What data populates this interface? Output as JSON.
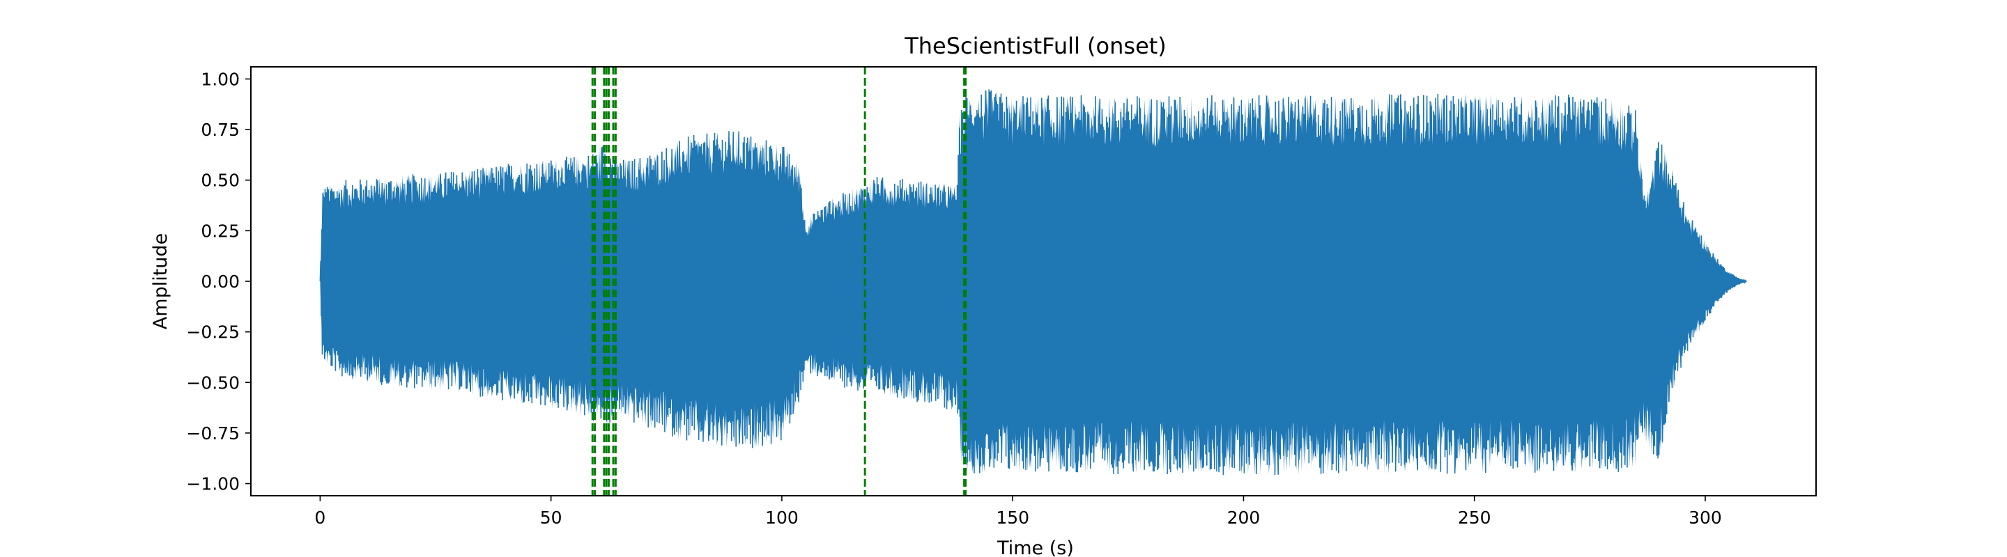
{
  "chart_data": {
    "type": "line",
    "title": "TheScientistFull (onset)",
    "xlabel": "Time (s)",
    "ylabel": "Amplitude",
    "xlim": [
      -15,
      324
    ],
    "ylim": [
      -1.06,
      1.06
    ],
    "xticks": [
      0,
      50,
      100,
      150,
      200,
      250,
      300
    ],
    "yticks": [
      -1.0,
      -0.75,
      -0.5,
      -0.25,
      0.0,
      0.25,
      0.5,
      0.75,
      1.0
    ],
    "ytick_labels": [
      "−1.00",
      "−0.75",
      "−0.50",
      "−0.25",
      "0.00",
      "0.25",
      "0.50",
      "0.75",
      "1.00"
    ],
    "grid": false,
    "legend": "none",
    "series": [
      {
        "kind": "waveform-envelope",
        "color": "#1f77b4",
        "x": [
          0,
          0.5,
          5,
          15,
          30,
          45,
          55,
          59,
          62,
          64,
          70,
          80,
          90,
          100,
          104,
          105,
          110,
          117,
          120,
          130,
          138,
          138.5,
          140,
          145,
          150,
          200,
          250,
          280,
          285,
          286,
          287,
          288,
          290,
          293,
          296,
          300,
          303,
          305,
          307,
          309
        ],
        "upper": [
          0.0,
          0.47,
          0.5,
          0.52,
          0.55,
          0.6,
          0.62,
          0.64,
          0.7,
          0.6,
          0.62,
          0.72,
          0.75,
          0.68,
          0.58,
          0.3,
          0.4,
          0.48,
          0.52,
          0.5,
          0.48,
          0.82,
          0.94,
          0.95,
          0.92,
          0.92,
          0.93,
          0.92,
          0.85,
          0.6,
          0.42,
          0.5,
          0.72,
          0.55,
          0.35,
          0.2,
          0.1,
          0.05,
          0.02,
          0.0
        ],
        "lower": [
          0.0,
          -0.4,
          -0.48,
          -0.52,
          -0.55,
          -0.62,
          -0.65,
          -0.7,
          -0.72,
          -0.68,
          -0.72,
          -0.8,
          -0.85,
          -0.8,
          -0.6,
          -0.45,
          -0.5,
          -0.55,
          -0.55,
          -0.6,
          -0.65,
          -0.88,
          -0.95,
          -0.96,
          -0.95,
          -0.96,
          -0.95,
          -0.95,
          -0.92,
          -0.85,
          -0.8,
          -0.85,
          -0.9,
          -0.55,
          -0.35,
          -0.2,
          -0.1,
          -0.05,
          -0.02,
          0.0
        ]
      }
    ],
    "onsets": {
      "color": "#008000",
      "style": "dashed",
      "x": [
        59.0,
        59.5,
        61.5,
        62.0,
        62.5,
        63.5,
        64.0,
        118.0,
        139.5,
        139.8
      ]
    },
    "colors": {
      "signal": "#1f77b4",
      "onset": "#008000",
      "axes": "#000000"
    }
  }
}
